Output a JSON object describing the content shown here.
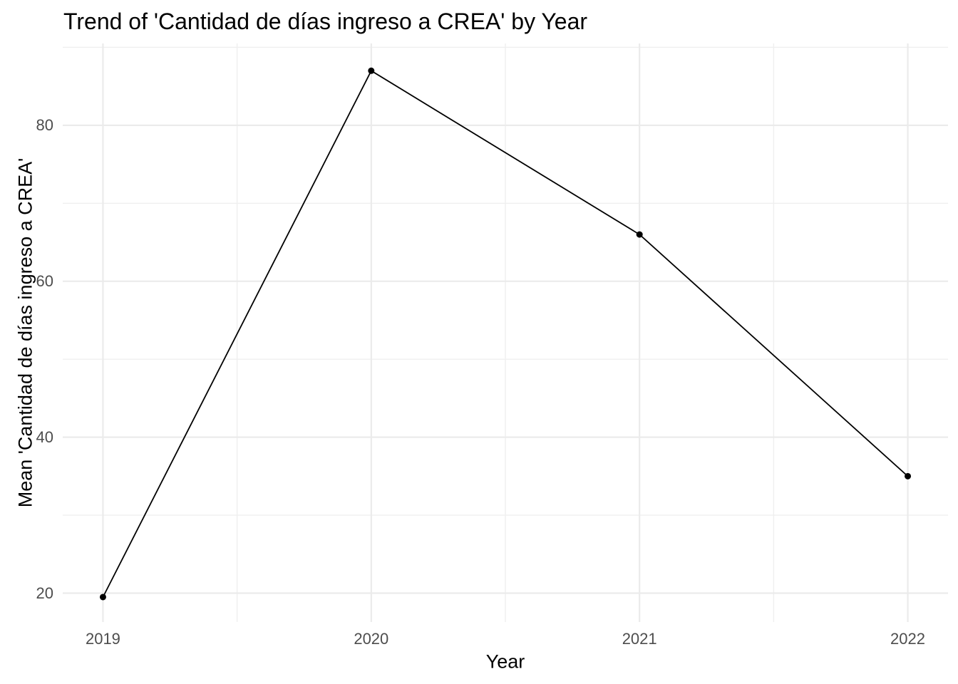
{
  "chart_data": {
    "type": "line",
    "title": "Trend of 'Cantidad de días ingreso a CREA' by Year",
    "xlabel": "Year",
    "ylabel": "Mean 'Cantidad de días ingreso a CREA'",
    "x": [
      2019,
      2020,
      2021,
      2022
    ],
    "values": [
      19.5,
      87,
      66,
      35
    ],
    "xlim": [
      2018.85,
      2022.15
    ],
    "ylim": [
      16.3,
      90.5
    ],
    "x_major_ticks": [
      2019,
      2020,
      2021,
      2022
    ],
    "x_tick_labels": [
      "2019",
      "2020",
      "2021",
      "2022"
    ],
    "x_minor_ticks": [
      2019.5,
      2020.5,
      2021.5
    ],
    "y_major_ticks": [
      20,
      40,
      60,
      80
    ],
    "y_tick_labels": [
      "20",
      "40",
      "60",
      "80"
    ],
    "y_minor_ticks": [
      30,
      50,
      70,
      90
    ],
    "grid": "on",
    "legend": "none",
    "styles": {
      "background_color": "#FFFFFF",
      "line_color": "#000000",
      "point_color": "#000000",
      "grid_major_color": "#EBEBEB",
      "grid_minor_color": "#EFEFEF",
      "tick_label_color": "#4D4D4D",
      "title_color": "#000000",
      "axis_title_color": "#000000"
    }
  }
}
